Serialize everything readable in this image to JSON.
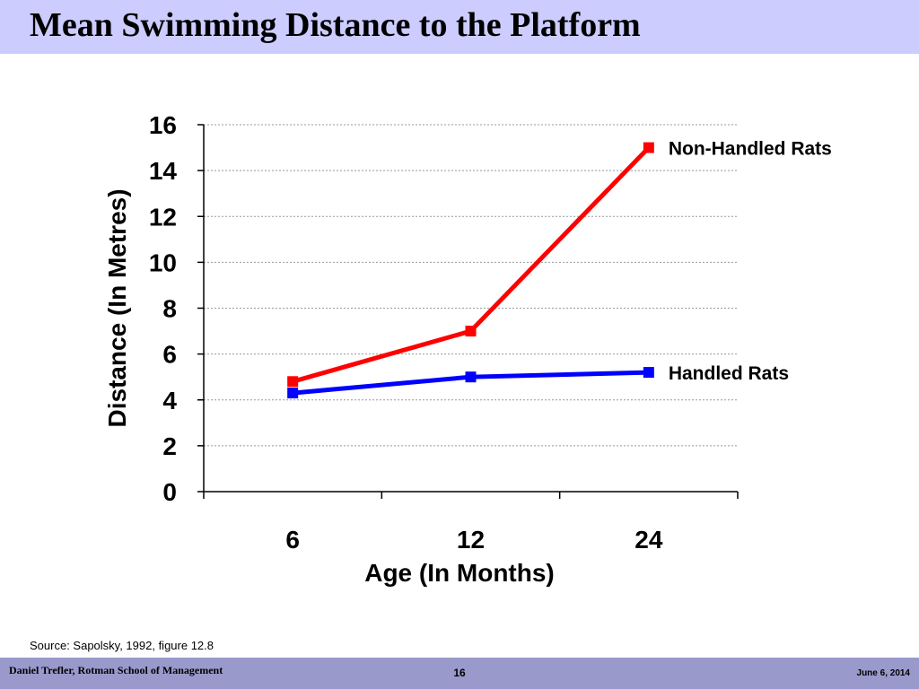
{
  "slide": {
    "title": "Mean Swimming Distance to the Platform",
    "source": "Source: Sapolsky, 1992, figure 12.8",
    "footer_left": "Daniel Trefler, Rotman School of Management",
    "footer_page": "16",
    "footer_date": "June 6, 2014",
    "title_bar_color": "#ccccff",
    "footer_bar_color": "#9999cc"
  },
  "chart_data": {
    "type": "line",
    "categories": [
      "6",
      "12",
      "24"
    ],
    "series": [
      {
        "name": "Non-Handled Rats",
        "values": [
          4.8,
          7.0,
          15.0
        ],
        "color": "#ff0000"
      },
      {
        "name": "Handled Rats",
        "values": [
          4.3,
          5.0,
          5.2
        ],
        "color": "#0000ff"
      }
    ],
    "xlabel": "Age (In Months)",
    "ylabel": "Distance (In Metres)",
    "ylim": [
      0,
      16
    ],
    "yticks": [
      "0",
      "2",
      "4",
      "6",
      "8",
      "10",
      "12",
      "14",
      "16"
    ],
    "grid": true,
    "legend": "series labels at right end of lines"
  }
}
